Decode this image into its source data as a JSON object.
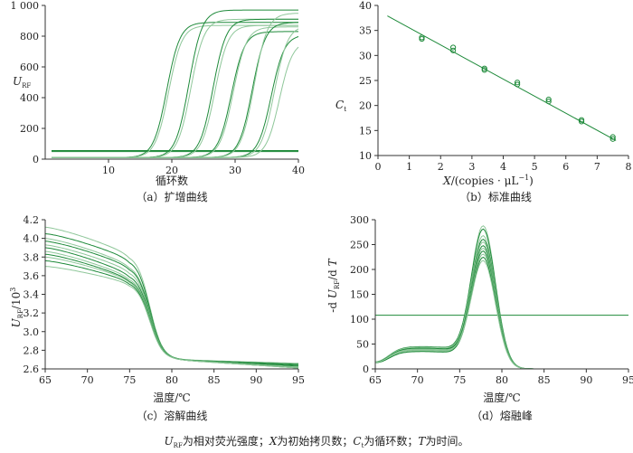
{
  "footnote": "U_RF为相对荧光强度；X为初始拷贝数；C_t为循环数；T为时间。",
  "colors": {
    "green": "#1e8a3a",
    "light_green": "#8fc79a",
    "axis": "#333333",
    "text": "#222222"
  },
  "chart_data": [
    {
      "type": "line",
      "caption": "（a）扩增曲线",
      "xlabel": "循环数",
      "ylabel": "U_RF",
      "xlim": [
        0,
        40
      ],
      "ylim": [
        0,
        1000
      ],
      "xticks": [
        10,
        20,
        30,
        40
      ],
      "yticks": [
        0,
        200,
        400,
        600,
        800,
        1000
      ],
      "ytick_labels": [
        "0",
        "200",
        "400",
        "600",
        "800",
        "1 000"
      ],
      "threshold": 55,
      "baseline": 10,
      "series": [
        {
          "ct": 17.0,
          "plateau": 880,
          "light": false
        },
        {
          "ct": 17.3,
          "plateau": 860,
          "light": true
        },
        {
          "ct": 20.5,
          "plateau": 960,
          "light": false
        },
        {
          "ct": 20.8,
          "plateau": 900,
          "light": true
        },
        {
          "ct": 24.3,
          "plateau": 900,
          "light": false
        },
        {
          "ct": 24.6,
          "plateau": 860,
          "light": true
        },
        {
          "ct": 27.2,
          "plateau": 820,
          "light": false
        },
        {
          "ct": 27.5,
          "plateau": 850,
          "light": true
        },
        {
          "ct": 30.5,
          "plateau": 880,
          "light": false
        },
        {
          "ct": 30.8,
          "plateau": 940,
          "light": true
        },
        {
          "ct": 33.5,
          "plateau": 800,
          "light": false
        },
        {
          "ct": 34.0,
          "plateau": 860,
          "light": true
        },
        {
          "ct": 34.8,
          "plateau": 760,
          "light": true
        }
      ]
    },
    {
      "type": "scatter",
      "caption": "（b）标准曲线",
      "xlabel": "X/(copies · μL⁻¹)",
      "ylabel": "C_t",
      "xlim": [
        0,
        8
      ],
      "ylim": [
        10,
        40
      ],
      "xticks": [
        0,
        1,
        2,
        3,
        4,
        5,
        6,
        7,
        8
      ],
      "yticks": [
        10,
        15,
        20,
        25,
        30,
        35,
        40
      ],
      "points": [
        {
          "x": 1.4,
          "y": 33.3
        },
        {
          "x": 1.4,
          "y": 33.6
        },
        {
          "x": 2.4,
          "y": 31.0
        },
        {
          "x": 2.4,
          "y": 31.6
        },
        {
          "x": 3.4,
          "y": 27.1
        },
        {
          "x": 3.4,
          "y": 27.4
        },
        {
          "x": 4.45,
          "y": 24.2
        },
        {
          "x": 4.45,
          "y": 24.6
        },
        {
          "x": 5.45,
          "y": 20.8
        },
        {
          "x": 5.45,
          "y": 21.2
        },
        {
          "x": 6.5,
          "y": 16.8
        },
        {
          "x": 6.5,
          "y": 17.1
        },
        {
          "x": 7.5,
          "y": 13.3
        },
        {
          "x": 7.5,
          "y": 13.7
        }
      ],
      "fit_line": [
        [
          0.3,
          37.9
        ],
        [
          7.6,
          13.0
        ]
      ]
    },
    {
      "type": "line",
      "caption": "（c）溶解曲线",
      "xlabel": "温度/℃",
      "ylabel": "U_RF/10³",
      "xlim": [
        65,
        95
      ],
      "ylim": [
        2.6,
        4.2
      ],
      "xticks": [
        65,
        70,
        75,
        80,
        85,
        90,
        95
      ],
      "yticks": [
        2.6,
        2.8,
        3.0,
        3.2,
        3.4,
        3.6,
        3.8,
        4.0,
        4.2
      ],
      "ytick_labels": [
        "2.6",
        "2.8",
        "3.0",
        "3.2",
        "3.4",
        "3.6",
        "3.8",
        "4.0",
        "4.2"
      ],
      "series": [
        {
          "start": 4.12,
          "mid": 3.83,
          "end": 2.66,
          "light": true
        },
        {
          "start": 4.05,
          "mid": 3.78,
          "end": 2.65,
          "light": false
        },
        {
          "start": 4.0,
          "mid": 3.72,
          "end": 2.64,
          "light": true
        },
        {
          "start": 3.97,
          "mid": 3.7,
          "end": 2.64,
          "light": false
        },
        {
          "start": 3.93,
          "mid": 3.66,
          "end": 2.63,
          "light": true
        },
        {
          "start": 3.9,
          "mid": 3.62,
          "end": 2.63,
          "light": false
        },
        {
          "start": 3.86,
          "mid": 3.59,
          "end": 2.62,
          "light": true
        },
        {
          "start": 3.83,
          "mid": 3.57,
          "end": 2.62,
          "light": false
        },
        {
          "start": 3.8,
          "mid": 3.56,
          "end": 2.62,
          "light": true
        },
        {
          "start": 3.76,
          "mid": 3.54,
          "end": 2.61,
          "light": false
        },
        {
          "start": 3.7,
          "mid": 3.52,
          "end": 2.61,
          "light": true
        }
      ]
    },
    {
      "type": "line",
      "caption": "（d）熔融峰",
      "xlabel": "温度/℃",
      "ylabel": "-d U_RF/d T",
      "xlim": [
        65,
        95
      ],
      "ylim": [
        0,
        300
      ],
      "xticks": [
        65,
        70,
        75,
        80,
        85,
        90,
        95
      ],
      "yticks": [
        0,
        50,
        100,
        150,
        200,
        250,
        300
      ],
      "threshold": 108,
      "series": [
        {
          "peak": 285,
          "shoulder": 40,
          "light": true
        },
        {
          "peak": 278,
          "shoulder": 45,
          "light": false
        },
        {
          "peak": 265,
          "shoulder": 42,
          "light": true
        },
        {
          "peak": 258,
          "shoulder": 38,
          "light": false
        },
        {
          "peak": 252,
          "shoulder": 44,
          "light": true
        },
        {
          "peak": 245,
          "shoulder": 40,
          "light": false
        },
        {
          "peak": 240,
          "shoulder": 36,
          "light": true
        },
        {
          "peak": 234,
          "shoulder": 42,
          "light": false
        },
        {
          "peak": 228,
          "shoulder": 38,
          "light": true
        },
        {
          "peak": 222,
          "shoulder": 35,
          "light": false
        },
        {
          "peak": 215,
          "shoulder": 40,
          "light": true
        }
      ]
    }
  ]
}
